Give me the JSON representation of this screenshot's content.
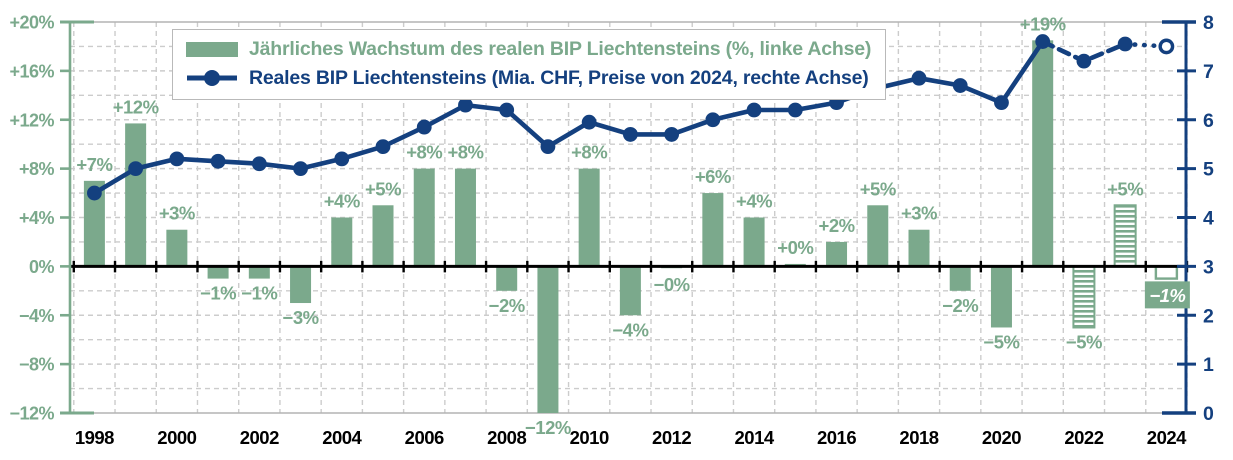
{
  "colors": {
    "green": "#7BA98C",
    "navy": "#14407F",
    "grid": "#cccccc",
    "spine": "#b3b3b3",
    "axis_black": "#000000",
    "white": "#ffffff"
  },
  "chart_data": {
    "type": "bar+line",
    "years": [
      1998,
      1999,
      2000,
      2001,
      2002,
      2003,
      2004,
      2005,
      2006,
      2007,
      2008,
      2009,
      2010,
      2011,
      2012,
      2013,
      2014,
      2015,
      2016,
      2017,
      2018,
      2019,
      2020,
      2021,
      2022,
      2023,
      2024
    ],
    "bar_series": {
      "name": "Jährliches Wachstum des realen BIP Liechtensteins (%, linke Achse)",
      "axis": "left",
      "unit": "%",
      "values": [
        7,
        11.7,
        3,
        -1,
        -1,
        -3,
        4,
        5,
        8,
        8,
        -2,
        -12,
        8,
        -4,
        -0.15,
        6,
        4,
        0.2,
        2,
        5,
        3,
        -2,
        -5,
        18.5,
        -5,
        5,
        -1
      ],
      "labels": [
        "+7%",
        "+12%",
        "+3%",
        "−1%",
        "−1%",
        "−3%",
        "+4%",
        "+5%",
        "+8%",
        "+8%",
        "−2%",
        "−12%",
        "+8%",
        "−4%",
        "−0%",
        "+6%",
        "+4%",
        "+0%",
        "+2%",
        "+5%",
        "+3%",
        "−2%",
        "−5%",
        "+19%",
        "−5%",
        "+5%",
        "−1%"
      ],
      "styles": [
        "solid",
        "solid",
        "solid",
        "solid",
        "solid",
        "solid",
        "solid",
        "solid",
        "solid",
        "solid",
        "solid",
        "solid",
        "solid",
        "solid",
        "solid",
        "solid",
        "solid",
        "solid",
        "solid",
        "solid",
        "solid",
        "solid",
        "solid",
        "solid",
        "hatched",
        "hatched",
        "outline"
      ]
    },
    "line_series": {
      "name": "Reales BIP Liechtensteins (Mia. CHF, Preise von 2024, rechte Achse)",
      "axis": "right",
      "unit": "Mia. CHF",
      "values": [
        4.5,
        5.0,
        5.2,
        5.15,
        5.1,
        5.0,
        5.2,
        5.45,
        5.85,
        6.3,
        6.2,
        5.45,
        5.95,
        5.7,
        5.7,
        6.0,
        6.2,
        6.2,
        6.35,
        6.65,
        6.85,
        6.7,
        6.35,
        7.6,
        7.2,
        7.55,
        7.5
      ],
      "solid_until_year": 2021,
      "dashed_years": [
        2022,
        2023
      ],
      "dotted_to_year": 2024,
      "open_marker_year": 2024
    },
    "left_axis": {
      "min": -12,
      "max": 20,
      "step": 4,
      "tick_labels": [
        "+20%",
        "+16%",
        "+12%",
        "+8%",
        "+4%",
        "0%",
        "−4%",
        "−8%",
        "−12%"
      ]
    },
    "right_axis": {
      "min": 0,
      "max": 8,
      "step": 1,
      "tick_labels": [
        "8",
        "7",
        "6",
        "5",
        "4",
        "3",
        "2",
        "1",
        "0"
      ]
    },
    "x_axis": {
      "tick_labels": [
        "1998",
        "2000",
        "2002",
        "2004",
        "2006",
        "2008",
        "2010",
        "2012",
        "2014",
        "2016",
        "2018",
        "2020",
        "2022",
        "2024"
      ]
    },
    "grid": {
      "horizontal_step_pct": 2,
      "vertical": "year-boundaries",
      "style": "dashed"
    },
    "badge_2024": {
      "text": "−1%"
    }
  }
}
